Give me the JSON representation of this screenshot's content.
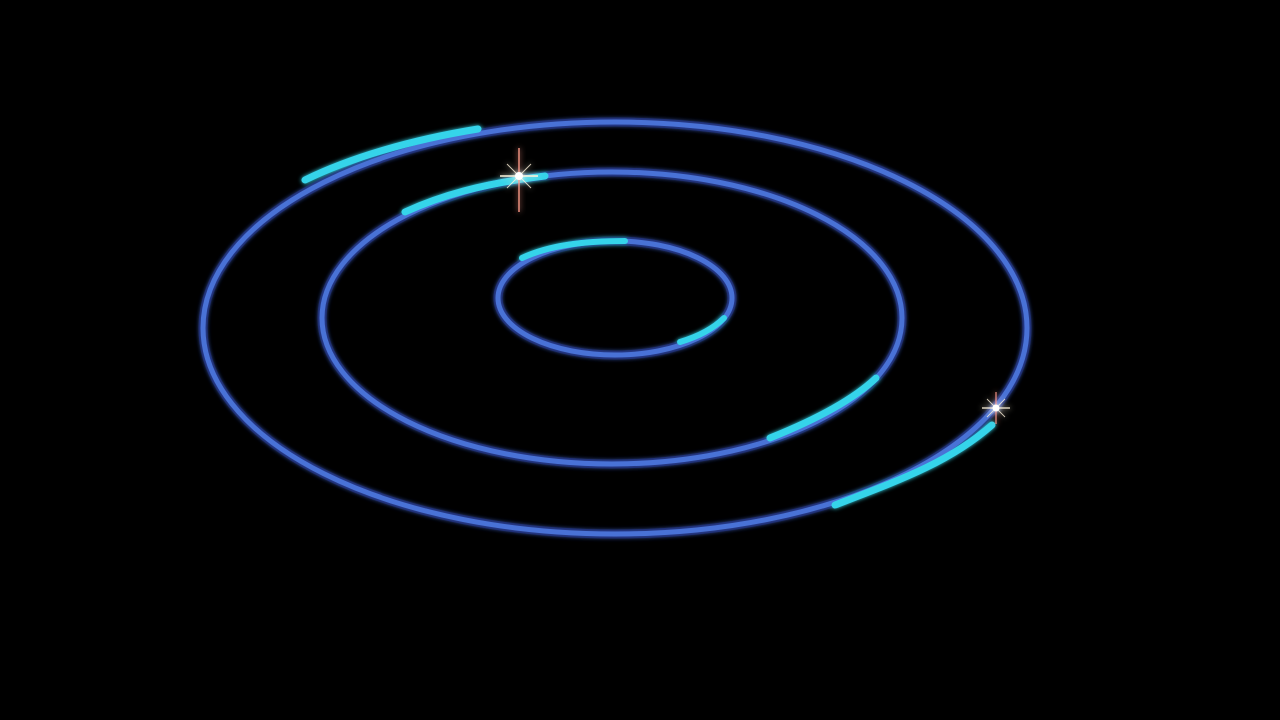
{
  "scene": {
    "background_color": "#000000",
    "ring_color": "#3f6fd8",
    "ring_edge_color": "#2a3f9a",
    "highlight_color": "#33d6ee",
    "sparkle_color": "#fff4dc",
    "sparkle_ray_color": "#ff9a8a",
    "ring_count": 3,
    "sparkle_count": 2
  }
}
